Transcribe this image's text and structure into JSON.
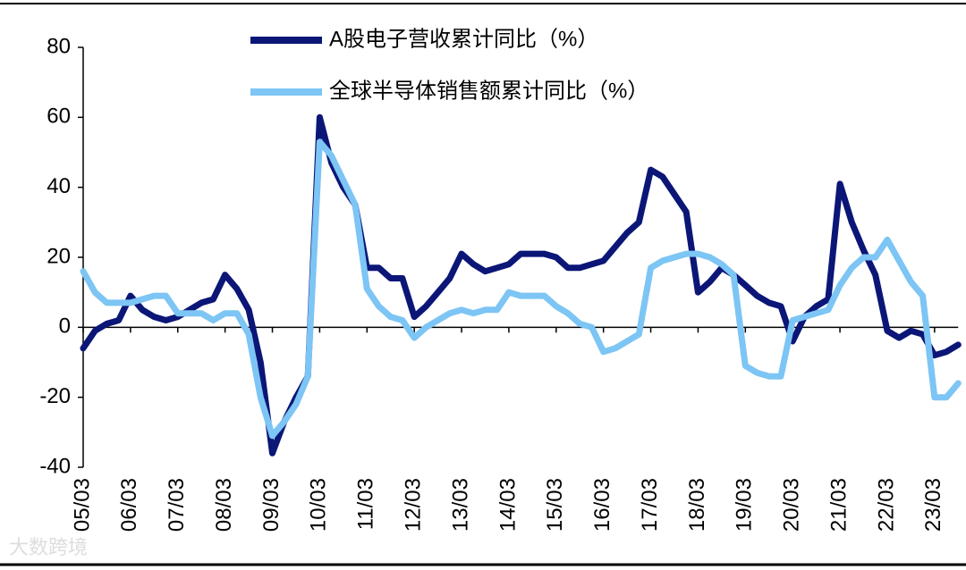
{
  "chart_data": {
    "type": "line",
    "categories": [
      "05/03",
      null,
      null,
      null,
      "06/03",
      null,
      null,
      null,
      "07/03",
      null,
      null,
      null,
      "08/03",
      null,
      null,
      null,
      "09/03",
      null,
      null,
      null,
      "10/03",
      null,
      null,
      null,
      "11/03",
      null,
      null,
      null,
      "12/03",
      null,
      null,
      null,
      "13/03",
      null,
      null,
      null,
      "14/03",
      null,
      null,
      null,
      "15/03",
      null,
      null,
      null,
      "16/03",
      null,
      null,
      null,
      "17/03",
      null,
      null,
      null,
      "18/03",
      null,
      null,
      null,
      "19/03",
      null,
      null,
      null,
      "20/03",
      null,
      null,
      null,
      "21/03",
      null,
      null,
      null,
      "22/03",
      null,
      null,
      null,
      "23/03",
      null,
      null
    ],
    "series": [
      {
        "name": "A股电子营收累计同比（%）",
        "color": "#0b1677",
        "values": [
          -6,
          -1,
          1,
          2,
          9,
          5,
          3,
          2,
          3,
          5,
          7,
          8,
          15,
          11,
          5,
          -10,
          -36,
          -27,
          -20,
          -14,
          60,
          47,
          40,
          35,
          17,
          17,
          14,
          14,
          3,
          6,
          10,
          14,
          21,
          18,
          16,
          17,
          18,
          21,
          21,
          21,
          20,
          17,
          17,
          18,
          19,
          23,
          27,
          30,
          45,
          43,
          38,
          33,
          10,
          13,
          17,
          15,
          12,
          9,
          7,
          6,
          -4,
          3,
          6,
          8,
          41,
          30,
          22,
          15,
          -1,
          -3,
          -1,
          -2,
          -8,
          -7,
          -5
        ]
      },
      {
        "name": "全球半导体销售额累计同比（%）",
        "color": "#7cc5f4",
        "values": [
          16,
          10,
          7,
          7,
          7,
          8,
          9,
          9,
          4,
          4,
          4,
          2,
          4,
          4,
          -2,
          -20,
          -31,
          -27,
          -22,
          -14,
          53,
          49,
          42,
          35,
          11,
          6,
          3,
          2,
          -3,
          0,
          2,
          4,
          5,
          4,
          5,
          5,
          10,
          9,
          9,
          9,
          6,
          4,
          1,
          0,
          -7,
          -6,
          -4,
          -2,
          17,
          19,
          20,
          21,
          21,
          20,
          18,
          15,
          -11,
          -13,
          -14,
          -14,
          2,
          3,
          4,
          5,
          12,
          17,
          20,
          20,
          25,
          19,
          13,
          9,
          -20,
          -20,
          -16
        ]
      }
    ],
    "ylim": [
      -40,
      80
    ],
    "yticks": [
      -40,
      -20,
      0,
      20,
      40,
      60,
      80
    ],
    "watermark": "大数跨境"
  }
}
